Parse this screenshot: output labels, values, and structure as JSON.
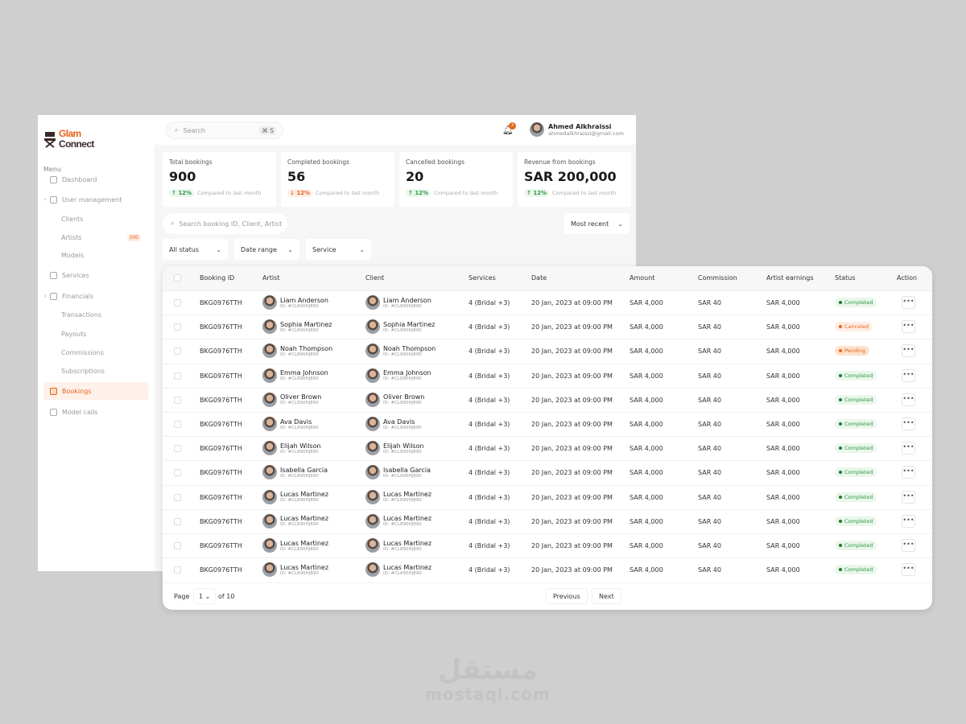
{
  "brand": {
    "line1": "Glam",
    "line2": "Connect"
  },
  "sidebar": {
    "menu_label": "Menu",
    "items": [
      {
        "label": "Dashboard",
        "icon": "grid-icon"
      },
      {
        "label": "User management",
        "icon": "users-icon",
        "expandable": true
      },
      {
        "label": "Clients",
        "sub": true
      },
      {
        "label": "Artists",
        "sub": true,
        "badge": "300"
      },
      {
        "label": "Models",
        "sub": true
      },
      {
        "label": "Services",
        "icon": "briefcase-icon"
      },
      {
        "label": "Financials",
        "icon": "wallet-icon",
        "expandable": true
      },
      {
        "label": "Transactions",
        "sub": true
      },
      {
        "label": "Payouts",
        "sub": true
      },
      {
        "label": "Commissions",
        "sub": true
      },
      {
        "label": "Subscriptions",
        "sub": true
      },
      {
        "label": "Bookings",
        "icon": "document-icon",
        "active": true
      },
      {
        "label": "Model calls",
        "icon": "camera-icon"
      }
    ]
  },
  "header": {
    "search_placeholder": "Search",
    "shortcut": "⌘ S",
    "notifications": "3",
    "user_name": "Ahmed Alkhraissi",
    "user_email": "ahmedalkhraissi@gmail.com"
  },
  "stats": [
    {
      "title": "Total bookings",
      "value": "900",
      "change": "12%",
      "trend": "up",
      "note": "Compared to last month"
    },
    {
      "title": "Completed bookings",
      "value": "56",
      "change": "12%",
      "trend": "down",
      "note": "Compared to last month"
    },
    {
      "title": "Cancelled bookings",
      "value": "20",
      "change": "12%",
      "trend": "up",
      "note": "Compared to last month"
    },
    {
      "title": "Revenue from bookings",
      "value": "SAR 200,000",
      "change": "12%",
      "trend": "up",
      "note": "Compared to last month"
    }
  ],
  "filters": {
    "search_placeholder": "Search booking ID, Client, Artist",
    "sort": "Most recent",
    "status": "All status",
    "date": "Date range",
    "service": "Service"
  },
  "table": {
    "columns": [
      "Booking ID",
      "Artist",
      "Client",
      "Services",
      "Date",
      "Amount",
      "Commission",
      "Artist earnings",
      "Status",
      "Action"
    ],
    "rows": [
      {
        "id": "BKG0976TTH",
        "name": "Liam Anderson",
        "pid": "ID:  #CL890HJ890",
        "services": "4 (Bridal +3)",
        "date": "20 Jan, 2023 at 09:00 PM",
        "amount": "SAR 4,000",
        "commission": "SAR 40",
        "earnings": "SAR 4,000",
        "status": "Completed"
      },
      {
        "id": "BKG0976TTH",
        "name": "Sophia Martinez",
        "pid": "ID:  #CL890HJ890",
        "services": "4 (Bridal +3)",
        "date": "20 Jan, 2023 at 09:00 PM",
        "amount": "SAR 4,000",
        "commission": "SAR 40",
        "earnings": "SAR 4,000",
        "status": "Canceled"
      },
      {
        "id": "BKG0976TTH",
        "name": "Noah Thompson",
        "pid": "ID:  #CL890HJ890",
        "services": "4 (Bridal +3)",
        "date": "20 Jan, 2023 at 09:00 PM",
        "amount": "SAR 4,000",
        "commission": "SAR 40",
        "earnings": "SAR 4,000",
        "status": "Pending"
      },
      {
        "id": "BKG0976TTH",
        "name": "Emma Johnson",
        "pid": "ID:  #CL890HJ890",
        "services": "4 (Bridal +3)",
        "date": "20 Jan, 2023 at 09:00 PM",
        "amount": "SAR 4,000",
        "commission": "SAR 40",
        "earnings": "SAR 4,000",
        "status": "Completed"
      },
      {
        "id": "BKG0976TTH",
        "name": "Oliver Brown",
        "pid": "ID:  #CL890HJ890",
        "services": "4 (Bridal +3)",
        "date": "20 Jan, 2023 at 09:00 PM",
        "amount": "SAR 4,000",
        "commission": "SAR 40",
        "earnings": "SAR 4,000",
        "status": "Completed"
      },
      {
        "id": "BKG0976TTH",
        "name": "Ava Davis",
        "pid": "ID:  #CL890HJ890",
        "services": "4 (Bridal +3)",
        "date": "20 Jan, 2023 at 09:00 PM",
        "amount": "SAR 4,000",
        "commission": "SAR 40",
        "earnings": "SAR 4,000",
        "status": "Completed"
      },
      {
        "id": "BKG0976TTH",
        "name": "Elijah Wilson",
        "pid": "ID:  #CL890HJ890",
        "services": "4 (Bridal +3)",
        "date": "20 Jan, 2023 at 09:00 PM",
        "amount": "SAR 4,000",
        "commission": "SAR 40",
        "earnings": "SAR 4,000",
        "status": "Completed"
      },
      {
        "id": "BKG0976TTH",
        "name": "Isabella Garcia",
        "pid": "ID:  #CL890HJ890",
        "services": "4 (Bridal +3)",
        "date": "20 Jan, 2023 at 09:00 PM",
        "amount": "SAR 4,000",
        "commission": "SAR 40",
        "earnings": "SAR 4,000",
        "status": "Completed"
      },
      {
        "id": "BKG0976TTH",
        "name": "Lucas Martinez",
        "pid": "ID:  #CL890HJ890",
        "services": "4 (Bridal +3)",
        "date": "20 Jan, 2023 at 09:00 PM",
        "amount": "SAR 4,000",
        "commission": "SAR 40",
        "earnings": "SAR 4,000",
        "status": "Completed"
      },
      {
        "id": "BKG0976TTH",
        "name": "Lucas Martinez",
        "pid": "ID:  #CL890HJ890",
        "services": "4 (Bridal +3)",
        "date": "20 Jan, 2023 at 09:00 PM",
        "amount": "SAR 4,000",
        "commission": "SAR 40",
        "earnings": "SAR 4,000",
        "status": "Completed"
      },
      {
        "id": "BKG0976TTH",
        "name": "Lucas Martinez",
        "pid": "ID:  #CL890HJ890",
        "services": "4 (Bridal +3)",
        "date": "20 Jan, 2023 at 09:00 PM",
        "amount": "SAR 4,000",
        "commission": "SAR 40",
        "earnings": "SAR 4,000",
        "status": "Completed"
      },
      {
        "id": "BKG0976TTH",
        "name": "Lucas Martinez",
        "pid": "ID:  #CL890HJ890",
        "services": "4 (Bridal +3)",
        "date": "20 Jan, 2023 at 09:00 PM",
        "amount": "SAR 4,000",
        "commission": "SAR 40",
        "earnings": "SAR 4,000",
        "status": "Completed"
      }
    ]
  },
  "status_colors": {
    "Completed": {
      "bg": "#eaf7ec",
      "fg": "#2e9a44",
      "dot": "#1f7a30"
    },
    "Canceled": {
      "bg": "#fdeee6",
      "fg": "#e8641b",
      "dot": "#e8641b"
    },
    "Pending": {
      "bg": "#fde2cf",
      "fg": "#e8641b",
      "dot": "#e8641b"
    }
  },
  "pagination": {
    "page_label": "Page",
    "page": "1",
    "of_label": "of 10",
    "previous": "Previous",
    "next": "Next"
  },
  "watermark": {
    "arabic": "مستقل",
    "latin": "mostaql.com"
  },
  "accent": "#e8641b"
}
